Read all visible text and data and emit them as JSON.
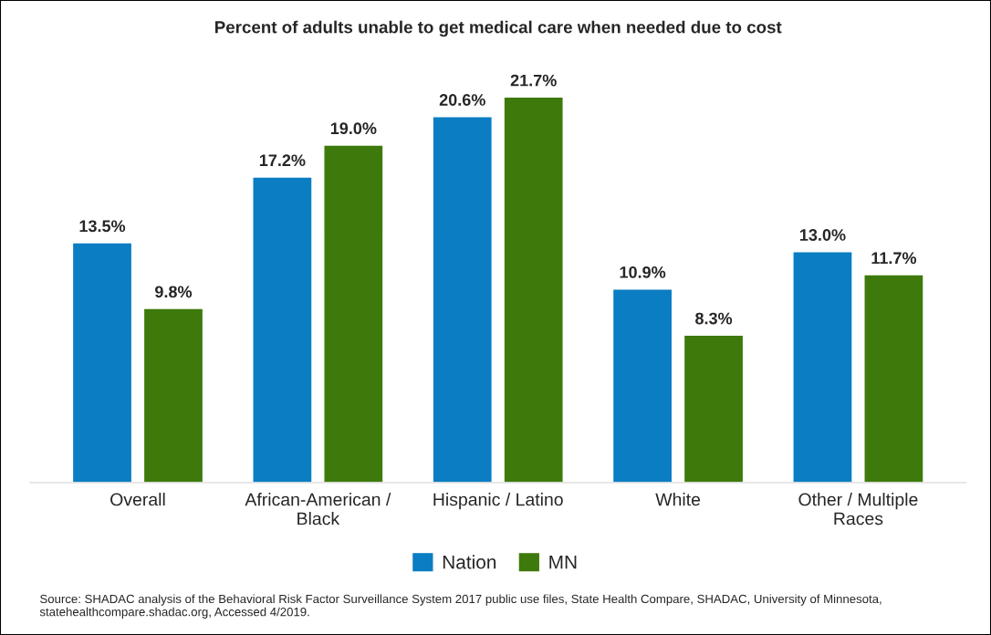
{
  "chart_data": {
    "type": "bar",
    "title": "Percent of adults unable to get medical care when needed due to cost",
    "categories": [
      "Overall",
      "African-American /\nBlack",
      "Hispanic / Latino",
      "White",
      "Other / Multiple\nRaces"
    ],
    "series": [
      {
        "name": "Nation",
        "color": "#0a7dc3",
        "values": [
          13.5,
          17.2,
          20.6,
          10.9,
          13.0
        ],
        "value_labels": [
          "13.5%",
          "17.2%",
          "20.6%",
          "10.9%",
          "13.0%"
        ]
      },
      {
        "name": "MN",
        "color": "#3e7a0b",
        "values": [
          9.8,
          19.0,
          21.7,
          8.3,
          11.7
        ],
        "value_labels": [
          "9.8%",
          "19.0%",
          "21.7%",
          "8.3%",
          "11.7%"
        ]
      }
    ],
    "legend": "bottom",
    "grid": false,
    "annotations": [
      "Source: SHADAC analysis of the Behavioral Risk Factor Surveillance System 2017 public use files, State Health Compare, SHADAC, University of Minnesota, statehealthcompare.shadac.org, Accessed 4/2019."
    ]
  }
}
